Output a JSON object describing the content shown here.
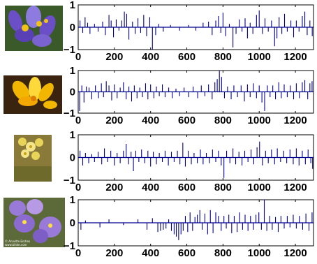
{
  "image_credit": {
    "line1": "© Annette Endres",
    "line2": "www.bilder.com"
  },
  "thumbnails": [
    {
      "name": "crocus-purple",
      "colors": {
        "petal": "#6a4fc7",
        "petal_light": "#8e7be0",
        "center": "#f2c314",
        "bg": "#3b5a2a"
      }
    },
    {
      "name": "crocus-yellow",
      "colors": {
        "petal": "#f2b600",
        "petal_light": "#ffd83a",
        "center": "#e07d00",
        "bg": "#3a2410"
      }
    },
    {
      "name": "primula-yellow",
      "colors": {
        "petal": "#e9d45a",
        "petal_light": "#f4e58a",
        "center": "#c8a010",
        "bg": "#8a7a3a"
      }
    },
    {
      "name": "pansy-purple",
      "colors": {
        "petal": "#9a7ad8",
        "petal_light": "#b79ae6",
        "center": "#ffe040",
        "bg": "#5c6a3a"
      }
    }
  ],
  "chart_data": [
    {
      "type": "stem",
      "x_ticks": [
        0,
        200,
        400,
        600,
        800,
        1000,
        1200
      ],
      "y_ticks": [
        -1,
        0,
        1
      ],
      "xlim": [
        0,
        1300
      ],
      "ylim": [
        -1,
        1
      ],
      "color": "#00008b",
      "points": [
        [
          10,
          0.3
        ],
        [
          25,
          -0.25
        ],
        [
          38,
          0.45
        ],
        [
          52,
          0.2
        ],
        [
          65,
          -0.3
        ],
        [
          90,
          0.15
        ],
        [
          110,
          -0.2
        ],
        [
          135,
          0.25
        ],
        [
          150,
          -0.35
        ],
        [
          170,
          0.55
        ],
        [
          182,
          0.3
        ],
        [
          195,
          -0.45
        ],
        [
          210,
          0.35
        ],
        [
          225,
          -0.15
        ],
        [
          240,
          0.3
        ],
        [
          255,
          0.7
        ],
        [
          268,
          0.6
        ],
        [
          280,
          -0.55
        ],
        [
          300,
          0.25
        ],
        [
          315,
          -0.3
        ],
        [
          330,
          0.4
        ],
        [
          345,
          -0.25
        ],
        [
          362,
          0.55
        ],
        [
          378,
          -0.4
        ],
        [
          395,
          0.45
        ],
        [
          410,
          -1.0
        ],
        [
          428,
          -0.35
        ],
        [
          445,
          0.15
        ],
        [
          470,
          -0.2
        ],
        [
          510,
          0.1
        ],
        [
          560,
          -0.15
        ],
        [
          610,
          0.1
        ],
        [
          650,
          -0.15
        ],
        [
          690,
          0.2
        ],
        [
          720,
          0.25
        ],
        [
          740,
          -0.35
        ],
        [
          760,
          0.3
        ],
        [
          775,
          0.5
        ],
        [
          788,
          -0.25
        ],
        [
          800,
          0.65
        ],
        [
          815,
          -0.4
        ],
        [
          835,
          0.15
        ],
        [
          855,
          -0.9
        ],
        [
          872,
          -0.3
        ],
        [
          890,
          0.35
        ],
        [
          905,
          -0.2
        ],
        [
          922,
          0.4
        ],
        [
          935,
          -0.5
        ],
        [
          950,
          0.2
        ],
        [
          965,
          -0.3
        ],
        [
          985,
          0.55
        ],
        [
          1000,
          0.75
        ],
        [
          1018,
          -0.3
        ],
        [
          1032,
          0.4
        ],
        [
          1050,
          -0.2
        ],
        [
          1068,
          0.3
        ],
        [
          1085,
          -0.85
        ],
        [
          1098,
          -0.5
        ],
        [
          1110,
          0.45
        ],
        [
          1125,
          -0.3
        ],
        [
          1140,
          0.6
        ],
        [
          1155,
          -0.2
        ],
        [
          1175,
          0.3
        ],
        [
          1190,
          -0.45
        ],
        [
          1205,
          0.3
        ],
        [
          1220,
          -0.2
        ],
        [
          1238,
          0.5
        ],
        [
          1252,
          0.7
        ],
        [
          1265,
          -0.35
        ],
        [
          1280,
          0.3
        ],
        [
          1293,
          -0.4
        ]
      ]
    },
    {
      "type": "stem",
      "x_ticks": [
        0,
        200,
        400,
        600,
        800,
        1000,
        1200
      ],
      "y_ticks": [
        -1,
        0,
        1
      ],
      "xlim": [
        0,
        1300
      ],
      "ylim": [
        -1,
        1
      ],
      "color": "#00008b",
      "points": [
        [
          8,
          -0.9
        ],
        [
          20,
          0.3
        ],
        [
          32,
          -0.5
        ],
        [
          45,
          0.25
        ],
        [
          60,
          0.2
        ],
        [
          75,
          -0.35
        ],
        [
          95,
          0.3
        ],
        [
          112,
          -0.3
        ],
        [
          128,
          0.4
        ],
        [
          140,
          -0.25
        ],
        [
          155,
          0.5
        ],
        [
          170,
          0.3
        ],
        [
          185,
          -0.4
        ],
        [
          200,
          0.35
        ],
        [
          215,
          -0.3
        ],
        [
          232,
          0.2
        ],
        [
          250,
          0.45
        ],
        [
          265,
          -0.35
        ],
        [
          280,
          0.25
        ],
        [
          295,
          -0.45
        ],
        [
          310,
          0.3
        ],
        [
          325,
          -0.3
        ],
        [
          340,
          0.2
        ],
        [
          355,
          -0.25
        ],
        [
          372,
          0.4
        ],
        [
          385,
          -0.35
        ],
        [
          400,
          0.35
        ],
        [
          418,
          -0.3
        ],
        [
          432,
          0.25
        ],
        [
          448,
          -0.2
        ],
        [
          465,
          0.35
        ],
        [
          480,
          -0.25
        ],
        [
          500,
          0.2
        ],
        [
          520,
          -0.3
        ],
        [
          540,
          0.15
        ],
        [
          560,
          -0.2
        ],
        [
          585,
          0.2
        ],
        [
          610,
          -0.25
        ],
        [
          635,
          0.25
        ],
        [
          660,
          -0.3
        ],
        [
          680,
          0.3
        ],
        [
          700,
          -0.2
        ],
        [
          720,
          0.35
        ],
        [
          740,
          -0.35
        ],
        [
          755,
          0.45
        ],
        [
          768,
          0.6
        ],
        [
          780,
          1.0
        ],
        [
          792,
          0.7
        ],
        [
          808,
          -0.3
        ],
        [
          825,
          0.25
        ],
        [
          845,
          -0.35
        ],
        [
          860,
          0.3
        ],
        [
          880,
          -0.25
        ],
        [
          900,
          0.3
        ],
        [
          918,
          -0.45
        ],
        [
          935,
          0.35
        ],
        [
          950,
          -0.25
        ],
        [
          968,
          0.4
        ],
        [
          985,
          -0.3
        ],
        [
          1000,
          0.3
        ],
        [
          1015,
          -0.5
        ],
        [
          1030,
          -0.9
        ],
        [
          1045,
          0.3
        ],
        [
          1060,
          -0.25
        ],
        [
          1075,
          0.3
        ],
        [
          1090,
          -0.35
        ],
        [
          1108,
          0.45
        ],
        [
          1122,
          -0.3
        ],
        [
          1138,
          0.35
        ],
        [
          1155,
          -0.25
        ],
        [
          1172,
          0.3
        ],
        [
          1190,
          -0.35
        ],
        [
          1205,
          0.4
        ],
        [
          1222,
          -0.3
        ],
        [
          1238,
          0.45
        ],
        [
          1252,
          0.55
        ],
        [
          1268,
          -0.35
        ],
        [
          1280,
          0.4
        ],
        [
          1292,
          0.5
        ]
      ]
    },
    {
      "type": "stem",
      "x_ticks": [
        0,
        200,
        400,
        600,
        800,
        1000,
        1200
      ],
      "y_ticks": [
        -1,
        0,
        1
      ],
      "xlim": [
        0,
        1300
      ],
      "ylim": [
        -1,
        1
      ],
      "color": "#00008b",
      "points": [
        [
          10,
          0.3
        ],
        [
          25,
          -0.35
        ],
        [
          40,
          0.2
        ],
        [
          58,
          -0.25
        ],
        [
          75,
          0.15
        ],
        [
          90,
          -0.2
        ],
        [
          110,
          0.25
        ],
        [
          130,
          -0.3
        ],
        [
          145,
          0.4
        ],
        [
          162,
          -0.2
        ],
        [
          180,
          0.3
        ],
        [
          200,
          -0.35
        ],
        [
          215,
          0.2
        ],
        [
          232,
          -0.25
        ],
        [
          250,
          0.3
        ],
        [
          265,
          0.6
        ],
        [
          278,
          -0.3
        ],
        [
          292,
          0.25
        ],
        [
          305,
          -0.6
        ],
        [
          318,
          0.3
        ],
        [
          335,
          -0.2
        ],
        [
          350,
          0.35
        ],
        [
          368,
          -0.25
        ],
        [
          385,
          0.3
        ],
        [
          400,
          -0.4
        ],
        [
          415,
          0.25
        ],
        [
          432,
          -0.3
        ],
        [
          448,
          0.2
        ],
        [
          465,
          -0.2
        ],
        [
          480,
          0.3
        ],
        [
          498,
          -0.35
        ],
        [
          515,
          0.25
        ],
        [
          530,
          -0.2
        ],
        [
          548,
          0.3
        ],
        [
          562,
          -0.3
        ],
        [
          578,
          0.65
        ],
        [
          592,
          -0.4
        ],
        [
          608,
          0.3
        ],
        [
          625,
          -0.3
        ],
        [
          640,
          0.2
        ],
        [
          658,
          -0.25
        ],
        [
          675,
          0.35
        ],
        [
          690,
          -0.3
        ],
        [
          708,
          0.2
        ],
        [
          725,
          -0.25
        ],
        [
          742,
          0.35
        ],
        [
          760,
          -0.2
        ],
        [
          775,
          0.3
        ],
        [
          790,
          -0.35
        ],
        [
          805,
          -0.9
        ],
        [
          820,
          0.3
        ],
        [
          838,
          -0.25
        ],
        [
          855,
          0.4
        ],
        [
          870,
          -0.3
        ],
        [
          888,
          0.25
        ],
        [
          905,
          -0.35
        ],
        [
          920,
          0.3
        ],
        [
          938,
          -0.2
        ],
        [
          955,
          0.35
        ],
        [
          970,
          -0.3
        ],
        [
          988,
          0.45
        ],
        [
          1002,
          0.7
        ],
        [
          1018,
          -0.35
        ],
        [
          1035,
          0.3
        ],
        [
          1050,
          -0.25
        ],
        [
          1068,
          0.35
        ],
        [
          1085,
          -0.3
        ],
        [
          1100,
          0.4
        ],
        [
          1118,
          -0.2
        ],
        [
          1135,
          0.3
        ],
        [
          1152,
          -0.25
        ],
        [
          1170,
          0.35
        ],
        [
          1188,
          -0.3
        ],
        [
          1205,
          0.4
        ],
        [
          1220,
          -0.35
        ],
        [
          1238,
          0.3
        ],
        [
          1255,
          -0.3
        ],
        [
          1270,
          0.35
        ],
        [
          1285,
          -0.25
        ],
        [
          1295,
          -0.5
        ]
      ]
    },
    {
      "type": "stem",
      "x_ticks": [
        0,
        200,
        400,
        600,
        800,
        1000,
        1200
      ],
      "y_ticks": [
        -1,
        0,
        1
      ],
      "xlim": [
        0,
        1300
      ],
      "ylim": [
        -1,
        1
      ],
      "color": "#00008b",
      "points": [
        [
          15,
          -0.3
        ],
        [
          40,
          0.1
        ],
        [
          120,
          -0.2
        ],
        [
          170,
          0.15
        ],
        [
          250,
          -0.1
        ],
        [
          330,
          0.15
        ],
        [
          380,
          -0.3
        ],
        [
          410,
          0.2
        ],
        [
          440,
          -0.4
        ],
        [
          455,
          -0.35
        ],
        [
          470,
          -0.3
        ],
        [
          485,
          -0.25
        ],
        [
          500,
          0.15
        ],
        [
          515,
          -0.35
        ],
        [
          530,
          -0.5
        ],
        [
          542,
          -0.6
        ],
        [
          555,
          -0.75
        ],
        [
          568,
          -0.5
        ],
        [
          580,
          -0.35
        ],
        [
          592,
          0.3
        ],
        [
          605,
          -0.4
        ],
        [
          618,
          0.45
        ],
        [
          632,
          -0.35
        ],
        [
          645,
          0.25
        ],
        [
          658,
          0.35
        ],
        [
          672,
          0.55
        ],
        [
          685,
          -0.3
        ],
        [
          700,
          0.4
        ],
        [
          715,
          -0.5
        ],
        [
          730,
          0.55
        ],
        [
          745,
          -0.45
        ],
        [
          760,
          0.45
        ],
        [
          775,
          0.3
        ],
        [
          790,
          -0.35
        ],
        [
          805,
          0.3
        ],
        [
          818,
          -0.25
        ],
        [
          832,
          0.35
        ],
        [
          848,
          -0.45
        ],
        [
          862,
          0.3
        ],
        [
          878,
          -0.4
        ],
        [
          892,
          0.45
        ],
        [
          908,
          -0.3
        ],
        [
          922,
          0.35
        ],
        [
          938,
          -0.35
        ],
        [
          952,
          0.3
        ],
        [
          968,
          -0.3
        ],
        [
          982,
          0.35
        ],
        [
          998,
          0.45
        ],
        [
          1012,
          -0.3
        ],
        [
          1028,
          1.0
        ],
        [
          1042,
          -0.35
        ],
        [
          1058,
          0.3
        ],
        [
          1072,
          -0.3
        ],
        [
          1090,
          0.25
        ],
        [
          1105,
          -0.4
        ],
        [
          1120,
          0.3
        ],
        [
          1138,
          -0.25
        ],
        [
          1155,
          0.3
        ],
        [
          1170,
          -0.2
        ],
        [
          1188,
          0.35
        ],
        [
          1205,
          -0.25
        ],
        [
          1222,
          0.3
        ],
        [
          1240,
          -0.3
        ],
        [
          1258,
          0.4
        ],
        [
          1275,
          -0.35
        ],
        [
          1292,
          0.45
        ]
      ]
    }
  ]
}
